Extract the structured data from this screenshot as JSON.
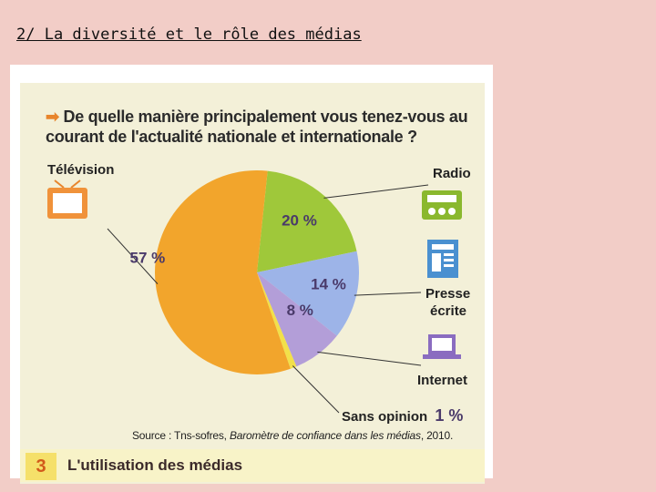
{
  "slide": {
    "title": "2/ La diversité et le rôle des médias"
  },
  "figure": {
    "question_arrow": "➡",
    "number": "3",
    "title": "L'utilisation des médias",
    "source_prefix": "Source : Tns-sofres, ",
    "source_title": "Baromètre de confiance dans les médias",
    "source_suffix": ", 2010.",
    "media_labels": {
      "tv": "Télévision",
      "radio": "Radio",
      "press_line1": "Presse",
      "press_line2": "écrite",
      "internet": "Internet",
      "none": "Sans opinion",
      "none_value": "1 %"
    },
    "icons": [
      "tv-icon",
      "radio-icon",
      "newspaper-icon",
      "laptop-icon"
    ]
  },
  "chart_data": {
    "type": "pie",
    "title": "De quelle manière principalement vous tenez-vous au courant de l'actualité nationale et internationale ?",
    "unit": "%",
    "slices": [
      {
        "label": "Radio",
        "value": 20,
        "display": "20 %",
        "color": "#9fc83a"
      },
      {
        "label": "Presse écrite",
        "value": 14,
        "display": "14 %",
        "color": "#9db4e8"
      },
      {
        "label": "Internet",
        "value": 8,
        "display": "8 %",
        "color": "#b39ed8"
      },
      {
        "label": "Sans opinion",
        "value": 1,
        "display": "1 %",
        "color": "#f2e04a"
      },
      {
        "label": "Télévision",
        "value": 57,
        "display": "57 %",
        "color": "#f2a52c"
      }
    ]
  }
}
